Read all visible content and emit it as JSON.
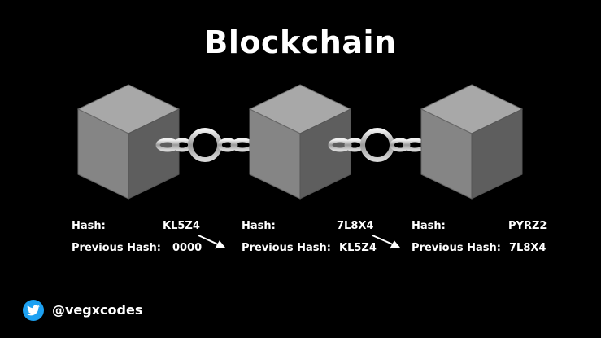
{
  "title": "Blockchain",
  "blocks": [
    {
      "hash_label": "Hash:",
      "hash": "KL5Z4",
      "prev_label": "Previous Hash:",
      "prev_hash": "0000"
    },
    {
      "hash_label": "Hash:",
      "hash": "7L8X4",
      "prev_label": "Previous Hash:",
      "prev_hash": "KL5Z4"
    },
    {
      "hash_label": "Hash:",
      "hash": "PYRZ2",
      "prev_label": "Previous Hash:",
      "prev_hash": "7L8X4"
    }
  ],
  "footer": {
    "icon": "twitter-bird-icon",
    "handle": "@vegxcodes"
  },
  "colors": {
    "background": "#000000",
    "cube_front": "#808080",
    "cube_top": "#a8a8a8",
    "cube_side": "#5c5c5c",
    "twitter_blue": "#1da1f2"
  }
}
